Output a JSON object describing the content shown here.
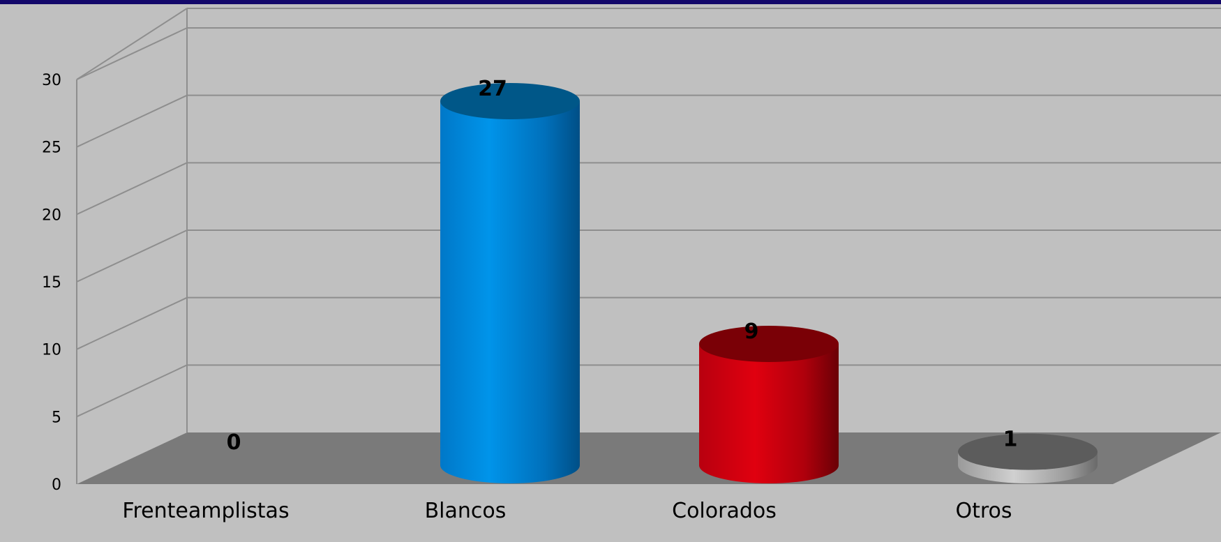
{
  "chart_data": {
    "type": "bar",
    "style": "3d-cylinder",
    "categories": [
      "Frenteamplistas",
      "Blancos",
      "Colorados",
      "Otros"
    ],
    "values": [
      0,
      27,
      9,
      1
    ],
    "data_labels": [
      "0",
      "27",
      "9",
      "1"
    ],
    "y_ticks": [
      "0",
      "5",
      "10",
      "15",
      "20",
      "25",
      "30"
    ],
    "ylim": [
      0,
      30
    ],
    "grid": true,
    "legend": "none",
    "colors": {
      "background": "#c0c0c0",
      "top_bar": "#13086a",
      "floor": "#7a7a7a",
      "gridline": "#8e8e8e",
      "Blancos": "#0089e0",
      "Colorados": "#d40012",
      "Otros": "#8a8a8a"
    }
  }
}
